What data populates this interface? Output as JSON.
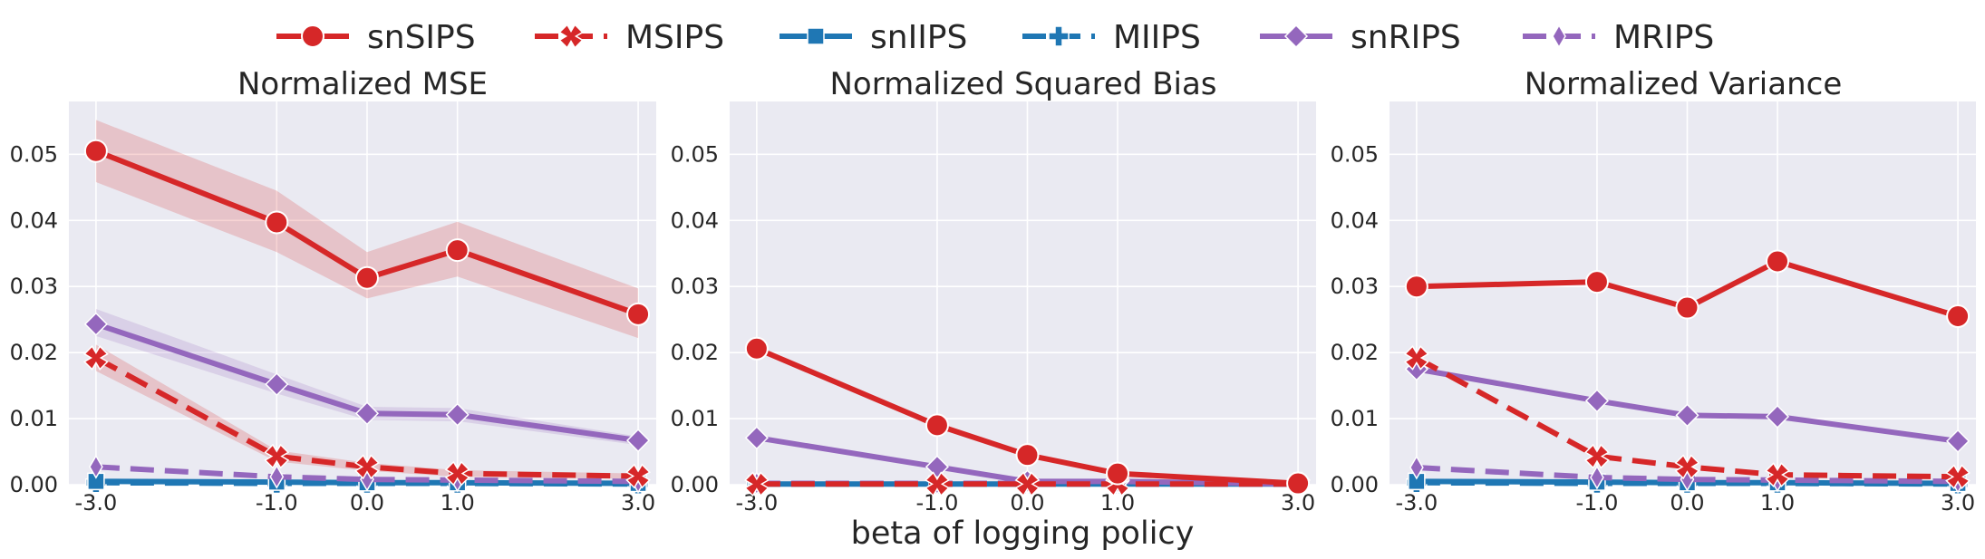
{
  "legend": [
    {
      "name": "snSIPS",
      "color": "#d62728",
      "dash": false,
      "marker": "circle"
    },
    {
      "name": "MSIPS",
      "color": "#d62728",
      "dash": true,
      "marker": "x"
    },
    {
      "name": "snIIPS",
      "color": "#1f77b4",
      "dash": false,
      "marker": "square"
    },
    {
      "name": "MIIPS",
      "color": "#1f77b4",
      "dash": true,
      "marker": "plus"
    },
    {
      "name": "snRIPS",
      "color": "#9467bd",
      "dash": false,
      "marker": "diamond"
    },
    {
      "name": "MRIPS",
      "color": "#9467bd",
      "dash": true,
      "marker": "thin-diamond"
    }
  ],
  "xlabel": "beta of logging policy",
  "chart_data": [
    {
      "type": "line",
      "title": "Normalized MSE",
      "x": [
        -3.0,
        -1.0,
        0.0,
        1.0,
        3.0
      ],
      "x_tick_labels": [
        "-3.0",
        "-1.0",
        "0.0",
        "1.0",
        "3.0"
      ],
      "ylim": [
        0,
        0.058
      ],
      "y_ticks": [
        0.0,
        0.01,
        0.02,
        0.03,
        0.04,
        0.05
      ],
      "y_tick_labels": [
        "0.00",
        "0.01",
        "0.02",
        "0.03",
        "0.04",
        "0.05"
      ],
      "grid": true,
      "series": [
        {
          "name": "snSIPS",
          "values": [
            0.0505,
            0.0397,
            0.0313,
            0.0355,
            0.0258
          ],
          "ci_low": [
            0.0458,
            0.0352,
            0.0282,
            0.0315,
            0.0222
          ],
          "ci_high": [
            0.0552,
            0.0445,
            0.0352,
            0.0398,
            0.0297
          ]
        },
        {
          "name": "MSIPS",
          "values": [
            0.0192,
            0.0043,
            0.0027,
            0.0017,
            0.0013
          ],
          "ci_low": [
            0.0172,
            0.0035,
            0.0021,
            0.0012,
            0.0009
          ],
          "ci_high": [
            0.0212,
            0.0052,
            0.0033,
            0.0022,
            0.0017
          ]
        },
        {
          "name": "snIIPS",
          "values": [
            0.0005,
            0.0004,
            0.0003,
            0.0003,
            0.0002
          ]
        },
        {
          "name": "MIIPS",
          "values": [
            0.0003,
            0.0002,
            0.0002,
            0.0002,
            0.0001
          ]
        },
        {
          "name": "snRIPS",
          "values": [
            0.0243,
            0.0152,
            0.0108,
            0.0106,
            0.0067
          ],
          "ci_low": [
            0.0225,
            0.0138,
            0.0098,
            0.0096,
            0.006
          ],
          "ci_high": [
            0.0266,
            0.0167,
            0.0118,
            0.0116,
            0.0073
          ]
        },
        {
          "name": "MRIPS",
          "values": [
            0.0027,
            0.0012,
            0.0008,
            0.0007,
            0.0005
          ]
        }
      ]
    },
    {
      "type": "line",
      "title": "Normalized Squared Bias",
      "x": [
        -3.0,
        -1.0,
        0.0,
        1.0,
        3.0
      ],
      "x_tick_labels": [
        "-3.0",
        "-1.0",
        "0.0",
        "1.0",
        "3.0"
      ],
      "ylim": [
        0,
        0.058
      ],
      "y_ticks": [
        0.0,
        0.01,
        0.02,
        0.03,
        0.04,
        0.05
      ],
      "y_tick_labels": [
        "0.00",
        "0.01",
        "0.02",
        "0.03",
        "0.04",
        "0.05"
      ],
      "grid": true,
      "series": [
        {
          "name": "snSIPS",
          "values": [
            0.0206,
            0.009,
            0.0045,
            0.0017,
            0.0002
          ]
        },
        {
          "name": "MSIPS",
          "values": [
            0.0001,
            0.0001,
            0.0001,
            0.0001,
            0.0001
          ]
        },
        {
          "name": "snIIPS",
          "values": [
            0.0001,
            0.0001,
            0.0001,
            0.0001,
            0.0001
          ]
        },
        {
          "name": "MIIPS",
          "values": [
            0.0001,
            0.0001,
            0.0001,
            0.0001,
            0.0001
          ]
        },
        {
          "name": "snRIPS",
          "values": [
            0.0071,
            0.0027,
            0.0005,
            0.0005,
            0.0001
          ]
        },
        {
          "name": "MRIPS",
          "values": [
            0.0002,
            0.0002,
            0.0002,
            0.0002,
            0.0001
          ]
        }
      ]
    },
    {
      "type": "line",
      "title": "Normalized Variance",
      "x": [
        -3.0,
        -1.0,
        0.0,
        1.0,
        3.0
      ],
      "x_tick_labels": [
        "-3.0",
        "-1.0",
        "0.0",
        "1.0",
        "3.0"
      ],
      "ylim": [
        0,
        0.058
      ],
      "y_ticks": [
        0.0,
        0.01,
        0.02,
        0.03,
        0.04,
        0.05
      ],
      "y_tick_labels": [
        "0.00",
        "0.01",
        "0.02",
        "0.03",
        "0.04",
        "0.05"
      ],
      "grid": true,
      "series": [
        {
          "name": "snSIPS",
          "values": [
            0.03,
            0.0307,
            0.0268,
            0.0338,
            0.0255
          ]
        },
        {
          "name": "MSIPS",
          "values": [
            0.0192,
            0.0043,
            0.0027,
            0.0015,
            0.0012
          ]
        },
        {
          "name": "snIIPS",
          "values": [
            0.0005,
            0.0004,
            0.0003,
            0.0003,
            0.0002
          ]
        },
        {
          "name": "MIIPS",
          "values": [
            0.0003,
            0.0002,
            0.0002,
            0.0002,
            0.0001
          ]
        },
        {
          "name": "snRIPS",
          "values": [
            0.0175,
            0.0127,
            0.0105,
            0.0103,
            0.0066
          ]
        },
        {
          "name": "MRIPS",
          "values": [
            0.0026,
            0.0011,
            0.0008,
            0.0007,
            0.0005
          ]
        }
      ]
    }
  ]
}
